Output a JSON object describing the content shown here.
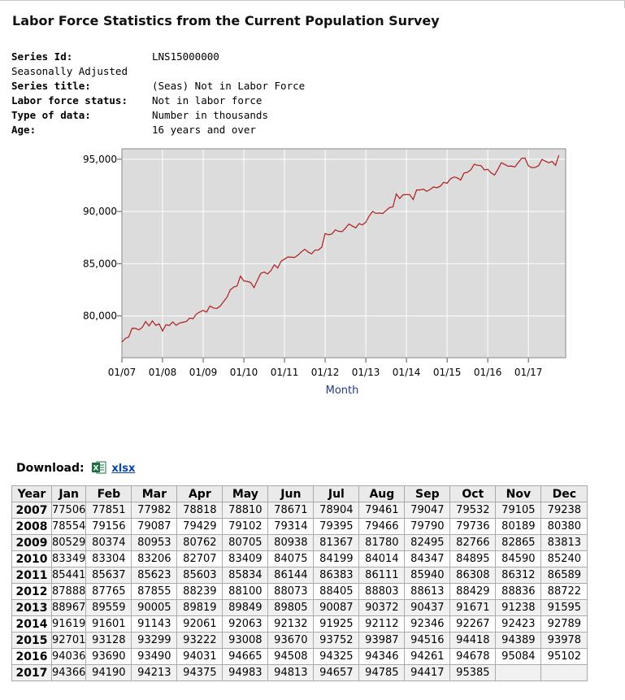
{
  "page_title": "Labor Force Statistics from the Current Population Survey",
  "meta": [
    {
      "label": "Series Id:",
      "value": "LNS15000000",
      "bold": true
    },
    {
      "label": "Seasonally Adjusted",
      "value": "",
      "bold": false
    },
    {
      "label": "Series title:",
      "value": "(Seas) Not in Labor Force",
      "bold": true
    },
    {
      "label": "Labor force status:",
      "value": "Not in labor force",
      "bold": true
    },
    {
      "label": "Type of data:",
      "value": "Number in thousands",
      "bold": true
    },
    {
      "label": "Age:",
      "value": "16 years and over",
      "bold": true
    }
  ],
  "download": {
    "label": "Download:",
    "link_text": "xlsx",
    "icon": "excel-icon"
  },
  "colors": {
    "line": "#b01c1c",
    "plot_bg": "#dcdcdc",
    "axis_label": "#1f3c88"
  },
  "chart_data": {
    "type": "line",
    "xlabel": "Month",
    "ylabel": "",
    "ylim": [
      76000,
      96000
    ],
    "y_ticks": [
      80000,
      85000,
      90000,
      95000
    ],
    "y_tick_labels": [
      "80,000",
      "85,000",
      "90,000",
      "95,000"
    ],
    "x_tick_labels": [
      "01/07",
      "01/08",
      "01/09",
      "01/10",
      "01/11",
      "01/12",
      "01/13",
      "01/14",
      "01/15",
      "01/16",
      "01/17"
    ],
    "grid": true,
    "start": "2007-01",
    "series": [
      {
        "values": [
          77506,
          77851,
          77982,
          78818,
          78810,
          78671,
          78904,
          79461,
          79047,
          79532,
          79105,
          79238,
          78554,
          79156,
          79087,
          79429,
          79102,
          79314,
          79395,
          79466,
          79790,
          79736,
          80189,
          80380,
          80529,
          80374,
          80953,
          80762,
          80705,
          80938,
          81367,
          81780,
          82495,
          82766,
          82865,
          83813,
          83349,
          83304,
          83206,
          82707,
          83409,
          84075,
          84199,
          84014,
          84347,
          84895,
          84590,
          85240,
          85441,
          85637,
          85623,
          85603,
          85834,
          86144,
          86383,
          86111,
          85940,
          86308,
          86312,
          86589,
          87888,
          87765,
          87855,
          88239,
          88100,
          88073,
          88405,
          88803,
          88613,
          88429,
          88836,
          88722,
          88967,
          89559,
          90005,
          89819,
          89849,
          89805,
          90087,
          90372,
          90437,
          91671,
          91238,
          91595,
          91619,
          91601,
          91143,
          92061,
          92063,
          92132,
          91925,
          92112,
          92346,
          92267,
          92423,
          92789,
          92701,
          93128,
          93299,
          93222,
          93008,
          93670,
          93752,
          93987,
          94516,
          94418,
          94389,
          93978,
          94036,
          93690,
          93490,
          94031,
          94665,
          94508,
          94325,
          94346,
          94261,
          94678,
          95084,
          95102,
          94366,
          94190,
          94213,
          94375,
          94983,
          94813,
          94657,
          94785,
          94417,
          95385
        ]
      }
    ]
  },
  "table": {
    "headers": [
      "Year",
      "Jan",
      "Feb",
      "Mar",
      "Apr",
      "May",
      "Jun",
      "Jul",
      "Aug",
      "Sep",
      "Oct",
      "Nov",
      "Dec"
    ],
    "rows": [
      [
        "2007",
        "77506",
        "77851",
        "77982",
        "78818",
        "78810",
        "78671",
        "78904",
        "79461",
        "79047",
        "79532",
        "79105",
        "79238"
      ],
      [
        "2008",
        "78554",
        "79156",
        "79087",
        "79429",
        "79102",
        "79314",
        "79395",
        "79466",
        "79790",
        "79736",
        "80189",
        "80380"
      ],
      [
        "2009",
        "80529",
        "80374",
        "80953",
        "80762",
        "80705",
        "80938",
        "81367",
        "81780",
        "82495",
        "82766",
        "82865",
        "83813"
      ],
      [
        "2010",
        "83349",
        "83304",
        "83206",
        "82707",
        "83409",
        "84075",
        "84199",
        "84014",
        "84347",
        "84895",
        "84590",
        "85240"
      ],
      [
        "2011",
        "85441",
        "85637",
        "85623",
        "85603",
        "85834",
        "86144",
        "86383",
        "86111",
        "85940",
        "86308",
        "86312",
        "86589"
      ],
      [
        "2012",
        "87888",
        "87765",
        "87855",
        "88239",
        "88100",
        "88073",
        "88405",
        "88803",
        "88613",
        "88429",
        "88836",
        "88722"
      ],
      [
        "2013",
        "88967",
        "89559",
        "90005",
        "89819",
        "89849",
        "89805",
        "90087",
        "90372",
        "90437",
        "91671",
        "91238",
        "91595"
      ],
      [
        "2014",
        "91619",
        "91601",
        "91143",
        "92061",
        "92063",
        "92132",
        "91925",
        "92112",
        "92346",
        "92267",
        "92423",
        "92789"
      ],
      [
        "2015",
        "92701",
        "93128",
        "93299",
        "93222",
        "93008",
        "93670",
        "93752",
        "93987",
        "94516",
        "94418",
        "94389",
        "93978"
      ],
      [
        "2016",
        "94036",
        "93690",
        "93490",
        "94031",
        "94665",
        "94508",
        "94325",
        "94346",
        "94261",
        "94678",
        "95084",
        "95102"
      ],
      [
        "2017",
        "94366",
        "94190",
        "94213",
        "94375",
        "94983",
        "94813",
        "94657",
        "94785",
        "94417",
        "95385",
        "",
        ""
      ]
    ]
  }
}
